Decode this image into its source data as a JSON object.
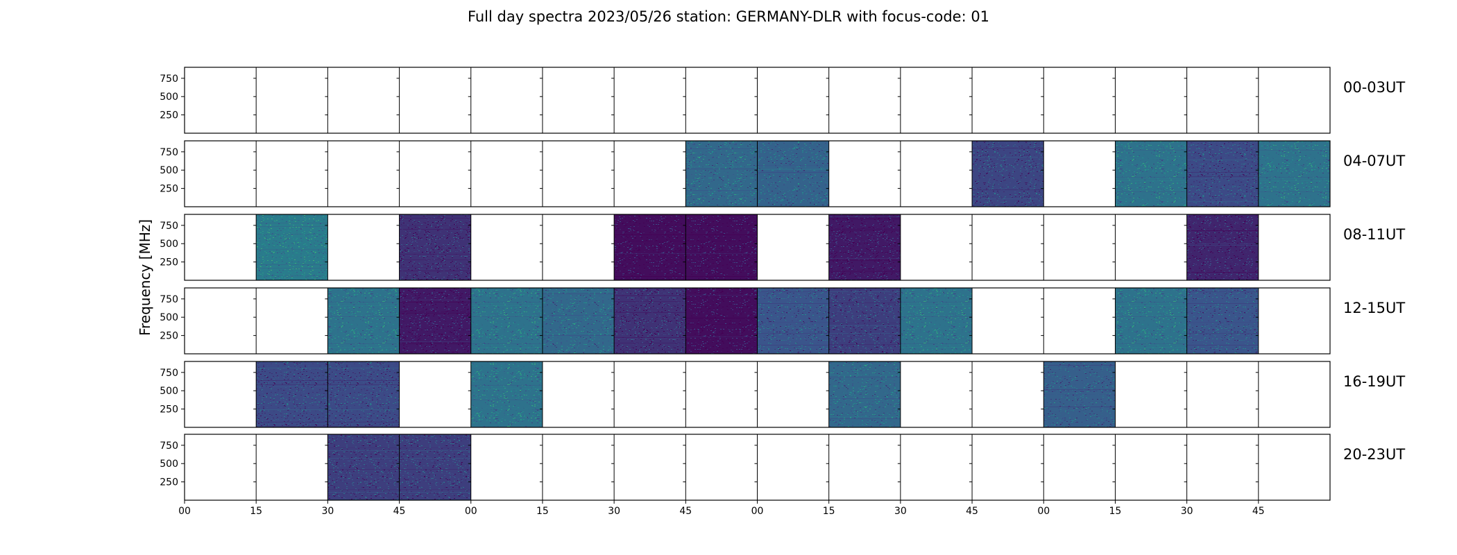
{
  "chart_data": {
    "type": "heatmap",
    "title": "Full day spectra 2023/05/26 station: GERMANY-DLR with focus-code: 01",
    "ylabel": "Frequency [MHz]",
    "y_ticks": [
      "750",
      "500",
      "250"
    ],
    "y_tick_values": [
      750,
      500,
      250
    ],
    "ylim": [
      0,
      900
    ],
    "x_ticks": [
      "00",
      "15",
      "30",
      "45",
      "00",
      "15",
      "30",
      "45",
      "00",
      "15",
      "30",
      "45",
      "00",
      "15",
      "30",
      "45"
    ],
    "slots_per_row": 16,
    "colormap": [
      "#440154",
      "#3b528b",
      "#21918c",
      "#5ec962"
    ],
    "rows": [
      {
        "label": "00-03UT",
        "filled": [],
        "intensity": []
      },
      {
        "label": "04-07UT",
        "filled": [
          7,
          8,
          11,
          13,
          14,
          15
        ],
        "intensity": [
          0.45,
          0.42,
          0.28,
          0.5,
          0.3,
          0.5
        ]
      },
      {
        "label": "08-11UT",
        "filled": [
          1,
          3,
          6,
          7,
          9,
          14
        ],
        "intensity": [
          0.55,
          0.2,
          0.05,
          0.05,
          0.1,
          0.15
        ]
      },
      {
        "label": "12-15UT",
        "filled": [
          2,
          3,
          4,
          5,
          6,
          7,
          8,
          9,
          10,
          13,
          14
        ],
        "intensity": [
          0.5,
          0.1,
          0.5,
          0.45,
          0.2,
          0.05,
          0.35,
          0.25,
          0.5,
          0.5,
          0.35
        ]
      },
      {
        "label": "16-19UT",
        "filled": [
          1,
          2,
          4,
          9,
          12
        ],
        "intensity": [
          0.3,
          0.3,
          0.5,
          0.45,
          0.4
        ]
      },
      {
        "label": "20-23UT",
        "filled": [
          2,
          3
        ],
        "intensity": [
          0.25,
          0.25
        ]
      }
    ],
    "grid": false
  }
}
